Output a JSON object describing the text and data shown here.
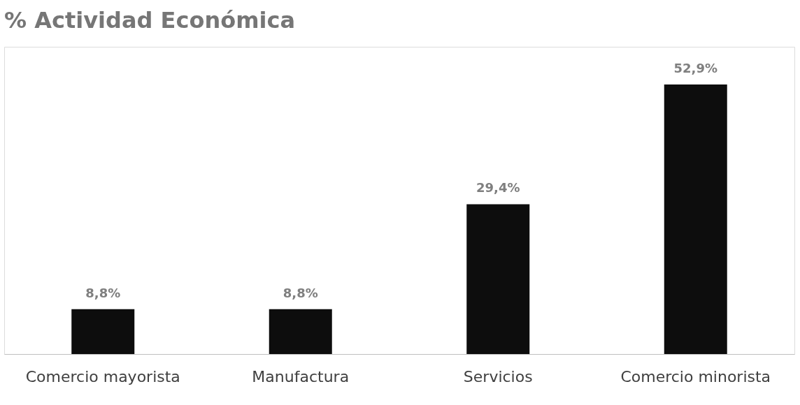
{
  "chart_data": {
    "type": "bar",
    "title": "% Actividad Económica",
    "categories": [
      "Comercio mayorista",
      "Manufactura",
      "Servicios",
      "Comercio minorista"
    ],
    "values": [
      8.8,
      8.8,
      29.4,
      52.9
    ],
    "value_labels": [
      "8,8%",
      "8,8%",
      "29,4%",
      "52,9%"
    ],
    "color": "#0d0d0d",
    "grid": false,
    "tick_labels": "x"
  }
}
